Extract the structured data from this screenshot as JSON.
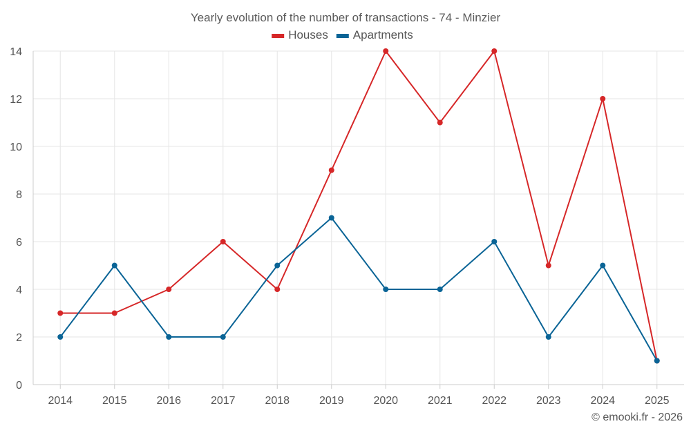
{
  "chart_data": {
    "type": "line",
    "title": "Yearly evolution of the number of transactions - 74 - Minzier",
    "xlabel": "",
    "ylabel": "",
    "categories": [
      "2014",
      "2015",
      "2016",
      "2017",
      "2018",
      "2019",
      "2020",
      "2021",
      "2022",
      "2023",
      "2024",
      "2025"
    ],
    "ylim": [
      0,
      14
    ],
    "yticks": [
      0,
      2,
      4,
      6,
      8,
      10,
      12,
      14
    ],
    "grid": true,
    "legend_position": "top-center",
    "series": [
      {
        "name": "Houses",
        "color": "#d62728",
        "values": [
          3,
          3,
          4,
          6,
          4,
          9,
          14,
          11,
          14,
          5,
          12,
          1
        ]
      },
      {
        "name": "Apartments",
        "color": "#0a6496",
        "values": [
          2,
          5,
          2,
          2,
          5,
          7,
          4,
          4,
          6,
          2,
          5,
          1
        ]
      }
    ],
    "credit": "© emooki.fr - 2026"
  }
}
